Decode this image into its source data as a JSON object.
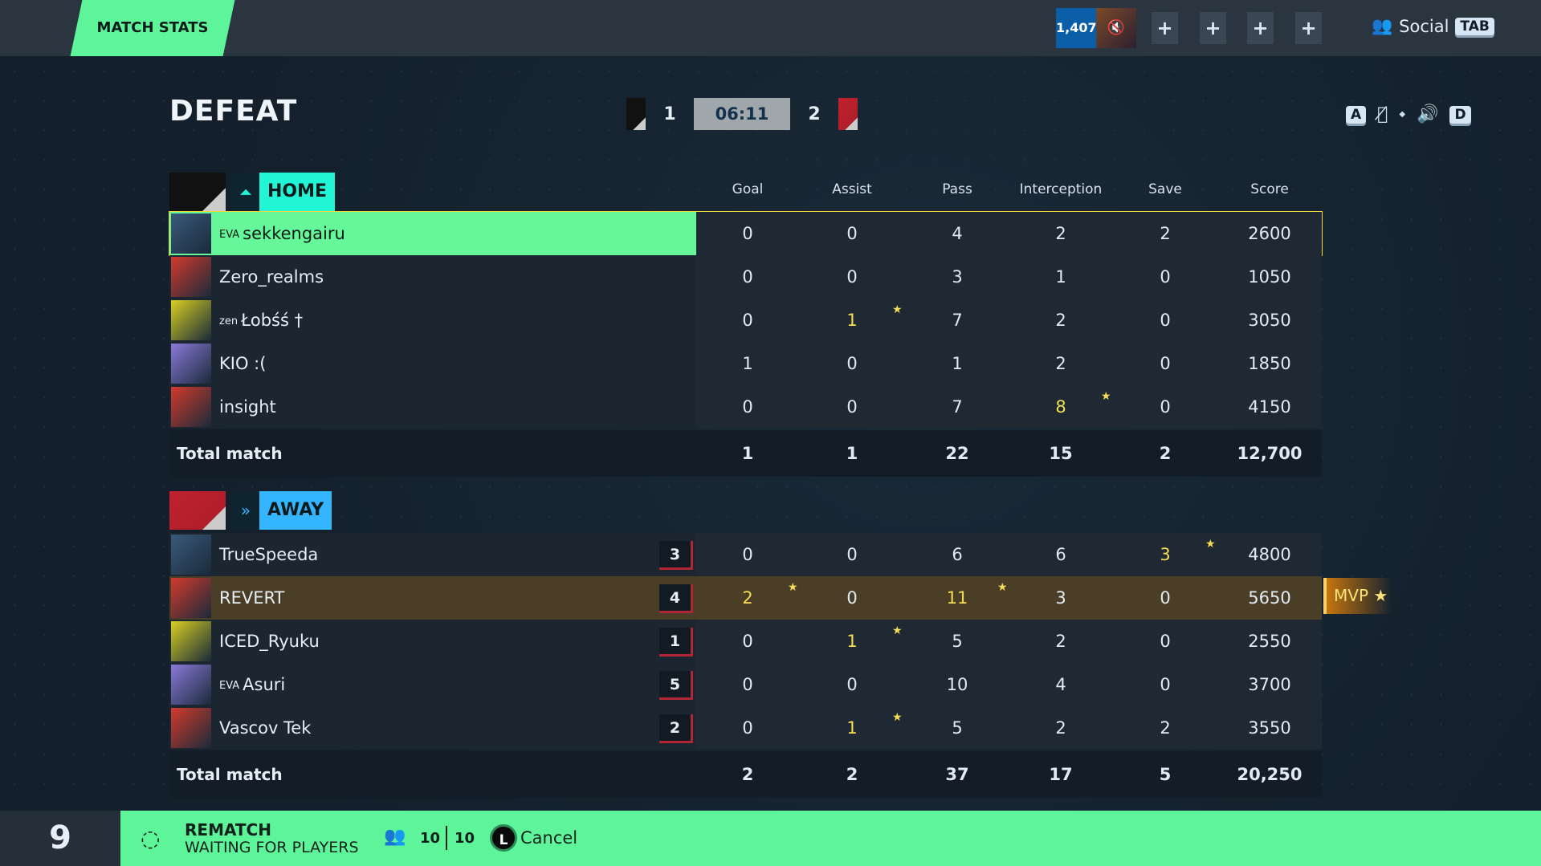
{
  "header": {
    "tab": "MATCH STATS",
    "currency": "1,407",
    "social_label": "Social",
    "social_key": "TAB",
    "party_slots": [
      "+",
      "+",
      "+",
      "+"
    ]
  },
  "match": {
    "result": "DEFEAT",
    "home_score": "1",
    "away_score": "2",
    "timer": "06:11",
    "voice_keys": [
      "A",
      "D"
    ]
  },
  "columns": [
    "Goal",
    "Assist",
    "Pass",
    "Interception",
    "Save",
    "Score"
  ],
  "home": {
    "label": "HOME",
    "color": "#22f5d6",
    "players": [
      {
        "prefix": "EVA",
        "name": "sekkengairu",
        "stats": [
          "0",
          "0",
          "4",
          "2",
          "2",
          "2600"
        ],
        "highlight": [],
        "me": true
      },
      {
        "prefix": "",
        "name": "Zero_realms",
        "stats": [
          "0",
          "0",
          "3",
          "1",
          "0",
          "1050"
        ],
        "highlight": []
      },
      {
        "prefix": "zen",
        "name": "Łobśś †",
        "stats": [
          "0",
          "1",
          "7",
          "2",
          "0",
          "3050"
        ],
        "highlight": [
          1
        ]
      },
      {
        "prefix": "",
        "name": "KIO :(",
        "stats": [
          "1",
          "0",
          "1",
          "2",
          "0",
          "1850"
        ],
        "highlight": []
      },
      {
        "prefix": "",
        "name": "insight",
        "stats": [
          "0",
          "0",
          "7",
          "8",
          "0",
          "4150"
        ],
        "highlight": [
          3
        ]
      }
    ],
    "total_label": "Total match",
    "totals": [
      "1",
      "1",
      "22",
      "15",
      "2",
      "12,700"
    ]
  },
  "away": {
    "label": "AWAY",
    "color": "#33b6ff",
    "players": [
      {
        "prefix": "",
        "name": "TrueSpeeda",
        "badge": "3",
        "stats": [
          "0",
          "0",
          "6",
          "6",
          "3",
          "4800"
        ],
        "highlight": [
          4
        ]
      },
      {
        "prefix": "",
        "name": "REVERT",
        "badge": "4",
        "stats": [
          "2",
          "0",
          "11",
          "3",
          "0",
          "5650"
        ],
        "highlight": [
          0,
          2
        ],
        "mvp": true
      },
      {
        "prefix": "",
        "name": "ICED_Ryuku",
        "badge": "1",
        "stats": [
          "0",
          "1",
          "5",
          "2",
          "0",
          "2550"
        ],
        "highlight": [
          1
        ]
      },
      {
        "prefix": "EVA",
        "name": "Asuri",
        "badge": "5",
        "stats": [
          "0",
          "0",
          "10",
          "4",
          "0",
          "3700"
        ],
        "highlight": []
      },
      {
        "prefix": "",
        "name": "Vascov Tek",
        "badge": "2",
        "stats": [
          "0",
          "1",
          "5",
          "2",
          "2",
          "3550"
        ],
        "highlight": [
          1
        ]
      }
    ],
    "total_label": "Total match",
    "totals": [
      "2",
      "2",
      "37",
      "17",
      "5",
      "20,250"
    ]
  },
  "mvp_label": "MVP",
  "footer": {
    "countdown": "9",
    "title": "REMATCH",
    "subtitle": "WAITING FOR PLAYERS",
    "ready": "10",
    "total": "10",
    "cancel_key": "L",
    "cancel_label": "Cancel"
  },
  "colors": {
    "accent": "#5ef59a",
    "highlight": "#f7dc56",
    "mvp": "#c5760c"
  }
}
